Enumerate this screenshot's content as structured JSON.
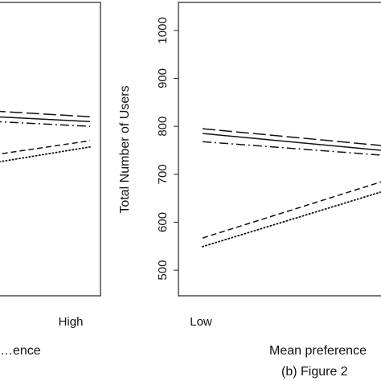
{
  "chart_data": [
    {
      "type": "line",
      "panel": "left",
      "title": "",
      "xlabel": "…ence",
      "ylabel": "",
      "categories": [
        "Low",
        "High"
      ],
      "x_tick_labels_visible": [
        "High"
      ],
      "ylim": [
        480,
        1030
      ],
      "grid": false,
      "series": [
        {
          "values": [
            834,
            820
          ],
          "linestyle": "long-dash"
        },
        {
          "values": [
            822,
            810
          ],
          "linestyle": "solid"
        },
        {
          "values": [
            812,
            800
          ],
          "linestyle": "dash-dot"
        },
        {
          "values": [
            735,
            770
          ],
          "linestyle": "short-dash"
        },
        {
          "values": [
            718,
            757
          ],
          "linestyle": "dotted"
        }
      ]
    },
    {
      "type": "line",
      "panel": "right",
      "title": "",
      "xlabel": "Mean preference",
      "ylabel": "Total Number of Users",
      "categories": [
        "Low",
        "High"
      ],
      "x_tick_labels_visible": [
        "Low"
      ],
      "yticks": [
        500,
        600,
        700,
        800,
        900,
        1000
      ],
      "ylim": [
        480,
        1030
      ],
      "grid": false,
      "series": [
        {
          "values": [
            795,
            760
          ],
          "linestyle": "long-dash"
        },
        {
          "values": [
            785,
            750
          ],
          "linestyle": "solid"
        },
        {
          "values": [
            768,
            740
          ],
          "linestyle": "dash-dot"
        },
        {
          "values": [
            567,
            684
          ],
          "linestyle": "short-dash"
        },
        {
          "values": [
            549,
            663
          ],
          "linestyle": "dotted"
        }
      ]
    }
  ],
  "captions": {
    "right": "(b) Figure 2"
  }
}
